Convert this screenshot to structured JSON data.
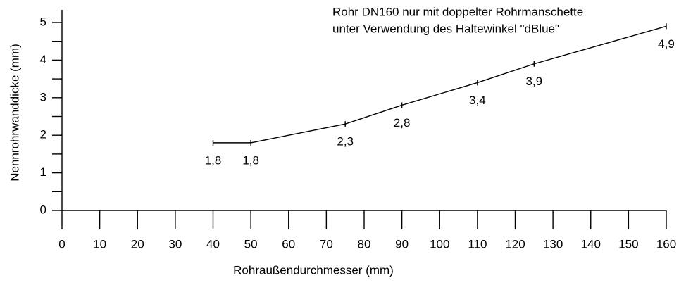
{
  "chart_data": {
    "type": "line",
    "annotation": [
      "Rohr DN160 nur mit doppelter Rohrmanschette",
      "unter Verwendung des Haltewinkel \"dBlue\""
    ],
    "xlabel": "Rohraußendurchmesser (mm)",
    "ylabel": "Nennrohrwanddicke (mm)",
    "x": [
      40,
      50,
      75,
      90,
      110,
      125,
      160
    ],
    "values": [
      1.8,
      1.8,
      2.3,
      2.8,
      3.4,
      3.9,
      4.9
    ],
    "value_labels": [
      "1,8",
      "1,8",
      "2,3",
      "2,8",
      "3,4",
      "3,9",
      "4,9"
    ],
    "color": "#000000",
    "xlim": [
      0,
      160
    ],
    "xticks": [
      0,
      10,
      20,
      30,
      40,
      50,
      60,
      70,
      80,
      90,
      100,
      110,
      120,
      130,
      140,
      150,
      160
    ],
    "ylim": [
      0,
      5
    ],
    "yticks": [
      0,
      1,
      2,
      3,
      4,
      5
    ],
    "yminor": [
      0.5,
      1.5,
      2.5,
      3.5,
      4.5
    ],
    "grid": false
  }
}
